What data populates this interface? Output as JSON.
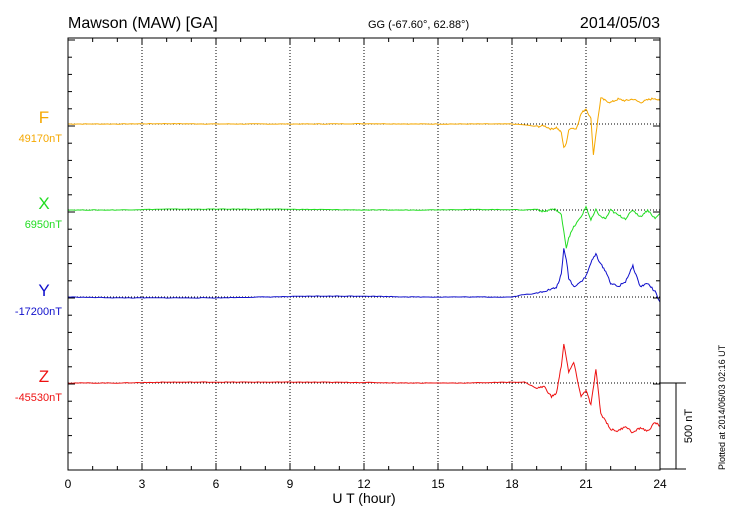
{
  "chart_data": {
    "type": "line",
    "title": "Mawson (MAW)  [GA]",
    "subtitle": "GG (-67.60°,  62.88°)",
    "date": "2014/05/03",
    "xlabel": "U T (hour)",
    "xlim": [
      0,
      24
    ],
    "xticks": [
      0,
      3,
      6,
      9,
      12,
      15,
      18,
      21,
      24
    ],
    "scale_bar_label": "500 nT",
    "scale_bar_nT": 500,
    "footer": "Plotted at 2014/06/03 02:16 UT",
    "series": [
      {
        "name": "F",
        "baseline_label": "49170nT",
        "baseline_nT": 49170,
        "color": "#f5a800",
        "x": [
          0,
          2,
          4,
          6,
          8,
          10,
          12,
          14,
          16,
          18,
          18.5,
          19,
          19.3,
          19.6,
          19.8,
          20.0,
          20.1,
          20.2,
          20.3,
          20.4,
          20.6,
          20.8,
          21.0,
          21.2,
          21.3,
          21.4,
          21.6,
          21.8,
          22.0,
          22.3,
          22.6,
          22.9,
          23.2,
          23.5,
          23.8,
          24.0
        ],
        "values": [
          0,
          0,
          2,
          0,
          0,
          0,
          2,
          0,
          0,
          0,
          -5,
          -15,
          -10,
          -30,
          -20,
          -50,
          -140,
          -110,
          -40,
          -20,
          -30,
          60,
          90,
          30,
          -180,
          -60,
          150,
          135,
          125,
          145,
          135,
          145,
          125,
          140,
          150,
          135
        ]
      },
      {
        "name": "X",
        "baseline_label": "6950nT",
        "baseline_nT": 6950,
        "color": "#22dd22",
        "x": [
          0,
          2,
          4,
          6,
          8,
          10,
          12,
          14,
          16,
          18,
          18.5,
          19,
          19.3,
          19.6,
          19.8,
          20.0,
          20.1,
          20.2,
          20.3,
          20.5,
          20.8,
          21.0,
          21.2,
          21.4,
          21.6,
          21.8,
          22.0,
          22.3,
          22.6,
          22.9,
          23.2,
          23.5,
          23.8,
          24.0
        ],
        "values": [
          0,
          0,
          5,
          5,
          5,
          3,
          0,
          0,
          3,
          2,
          0,
          5,
          -10,
          5,
          0,
          -30,
          -120,
          -220,
          -160,
          -100,
          -40,
          20,
          -60,
          0,
          -40,
          -50,
          0,
          -30,
          -50,
          0,
          -40,
          0,
          -50,
          -20
        ]
      },
      {
        "name": "Y",
        "baseline_label": "-17200nT",
        "baseline_nT": -17200,
        "color": "#1010cc",
        "x": [
          0,
          2,
          4,
          6,
          8,
          10,
          12,
          14,
          16,
          18,
          18.5,
          19,
          19.3,
          19.6,
          19.8,
          20.0,
          20.1,
          20.2,
          20.3,
          20.5,
          20.8,
          21.0,
          21.2,
          21.4,
          21.6,
          21.8,
          22.0,
          22.3,
          22.6,
          22.9,
          23.2,
          23.5,
          23.8,
          24.0
        ],
        "values": [
          0,
          -5,
          -5,
          -5,
          0,
          5,
          5,
          0,
          0,
          0,
          15,
          20,
          35,
          45,
          55,
          130,
          280,
          220,
          110,
          60,
          90,
          120,
          200,
          250,
          190,
          150,
          80,
          60,
          90,
          180,
          60,
          80,
          30,
          -30
        ]
      },
      {
        "name": "Z",
        "baseline_label": "-45530nT",
        "baseline_nT": -45530,
        "color": "#ee1111",
        "x": [
          0,
          2,
          4,
          6,
          8,
          10,
          12,
          14,
          16,
          18,
          18.5,
          19,
          19.3,
          19.6,
          19.8,
          20.0,
          20.1,
          20.2,
          20.3,
          20.5,
          20.8,
          21.0,
          21.2,
          21.4,
          21.6,
          21.8,
          22.0,
          22.3,
          22.6,
          22.9,
          23.2,
          23.5,
          23.8,
          24.0
        ],
        "values": [
          0,
          0,
          5,
          5,
          5,
          5,
          3,
          0,
          0,
          5,
          5,
          -30,
          -20,
          -80,
          -60,
          100,
          230,
          150,
          60,
          120,
          -80,
          -40,
          -130,
          80,
          -180,
          -220,
          -270,
          -280,
          -250,
          -290,
          -260,
          -280,
          -230,
          -250
        ]
      }
    ]
  }
}
